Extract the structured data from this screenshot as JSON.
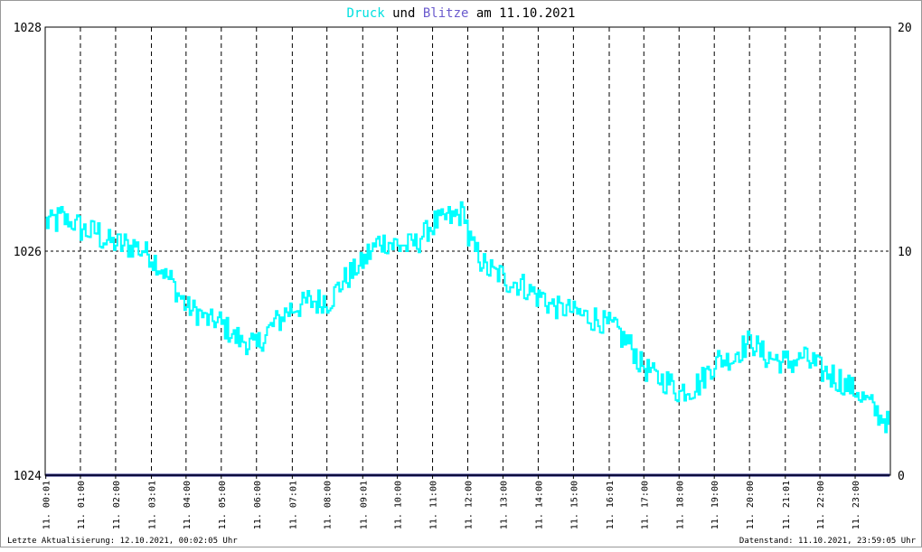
{
  "title": {
    "part1": "Druck",
    "part2": " und ",
    "part3": "Blitze",
    "part4": " am 11.10.2021"
  },
  "colors": {
    "background": "#ffffff",
    "border": "#999999",
    "grid": "#000000",
    "pressure": "#00ffff",
    "lightning": "#1a1a7a",
    "text": "#000000",
    "title_pressure": "#00e0e0",
    "title_lightning": "#6a5acd"
  },
  "footer": {
    "left": "Letzte Aktualisierung: 12.10.2021, 00:02:05 Uhr",
    "right": "Datenstand: 11.10.2021, 23:59:05 Uhr"
  },
  "chart_data": {
    "type": "line",
    "grid": true,
    "y_left": {
      "min": 1024,
      "max": 1028,
      "ticks": [
        "1024",
        "1026",
        "1028"
      ]
    },
    "y_right": {
      "min": 0,
      "max": 20,
      "ticks": [
        "0",
        "10",
        "20"
      ]
    },
    "x_ticks": [
      {
        "t": 0.017,
        "label": "11. 00:01"
      },
      {
        "t": 1.0,
        "label": "11. 01:00"
      },
      {
        "t": 2.0,
        "label": "11. 02:00"
      },
      {
        "t": 3.017,
        "label": "11. 03:01"
      },
      {
        "t": 4.0,
        "label": "11. 04:00"
      },
      {
        "t": 5.0,
        "label": "11. 05:00"
      },
      {
        "t": 6.0,
        "label": "11. 06:00"
      },
      {
        "t": 7.017,
        "label": "11. 07:01"
      },
      {
        "t": 8.0,
        "label": "11. 08:00"
      },
      {
        "t": 9.017,
        "label": "11. 09:01"
      },
      {
        "t": 10.0,
        "label": "11. 10:00"
      },
      {
        "t": 11.0,
        "label": "11. 11:00"
      },
      {
        "t": 12.0,
        "label": "11. 12:00"
      },
      {
        "t": 13.0,
        "label": "11. 13:00"
      },
      {
        "t": 14.0,
        "label": "11. 14:00"
      },
      {
        "t": 15.0,
        "label": "11. 15:00"
      },
      {
        "t": 16.017,
        "label": "11. 16:01"
      },
      {
        "t": 17.0,
        "label": "11. 17:00"
      },
      {
        "t": 18.0,
        "label": "11. 18:00"
      },
      {
        "t": 19.0,
        "label": "11. 19:00"
      },
      {
        "t": 20.0,
        "label": "11. 20:00"
      },
      {
        "t": 21.017,
        "label": "11. 21:01"
      },
      {
        "t": 22.0,
        "label": "11. 22:00"
      },
      {
        "t": 23.0,
        "label": "11. 23:00"
      }
    ],
    "series": [
      {
        "axis": "left",
        "noise": 0.12,
        "points": [
          [
            0.0,
            1026.25
          ],
          [
            0.5,
            1026.3
          ],
          [
            1.0,
            1026.2
          ],
          [
            1.5,
            1026.15
          ],
          [
            2.0,
            1026.05
          ],
          [
            2.5,
            1026.05
          ],
          [
            3.0,
            1025.95
          ],
          [
            3.5,
            1025.75
          ],
          [
            4.0,
            1025.5
          ],
          [
            4.5,
            1025.4
          ],
          [
            5.0,
            1025.35
          ],
          [
            5.5,
            1025.2
          ],
          [
            6.0,
            1025.15
          ],
          [
            6.5,
            1025.35
          ],
          [
            7.0,
            1025.5
          ],
          [
            7.5,
            1025.55
          ],
          [
            8.0,
            1025.55
          ],
          [
            8.5,
            1025.75
          ],
          [
            9.0,
            1025.9
          ],
          [
            9.5,
            1026.1
          ],
          [
            10.0,
            1026.05
          ],
          [
            10.5,
            1026.05
          ],
          [
            11.0,
            1026.25
          ],
          [
            11.5,
            1026.3
          ],
          [
            11.9,
            1026.35
          ],
          [
            12.0,
            1026.1
          ],
          [
            12.5,
            1025.85
          ],
          [
            13.0,
            1025.75
          ],
          [
            13.5,
            1025.7
          ],
          [
            14.0,
            1025.6
          ],
          [
            14.5,
            1025.5
          ],
          [
            15.0,
            1025.45
          ],
          [
            15.5,
            1025.4
          ],
          [
            16.0,
            1025.35
          ],
          [
            16.5,
            1025.2
          ],
          [
            17.0,
            1024.95
          ],
          [
            17.5,
            1024.85
          ],
          [
            18.0,
            1024.75
          ],
          [
            18.5,
            1024.8
          ],
          [
            19.0,
            1025.0
          ],
          [
            19.5,
            1025.05
          ],
          [
            20.0,
            1025.2
          ],
          [
            20.5,
            1025.05
          ],
          [
            21.0,
            1025.0
          ],
          [
            21.5,
            1025.05
          ],
          [
            22.0,
            1024.95
          ],
          [
            22.5,
            1024.85
          ],
          [
            23.0,
            1024.75
          ],
          [
            23.5,
            1024.6
          ],
          [
            23.95,
            1024.45
          ]
        ]
      },
      {
        "axis": "right",
        "points": [
          [
            0.0,
            0
          ],
          [
            23.98,
            0
          ]
        ]
      }
    ]
  }
}
